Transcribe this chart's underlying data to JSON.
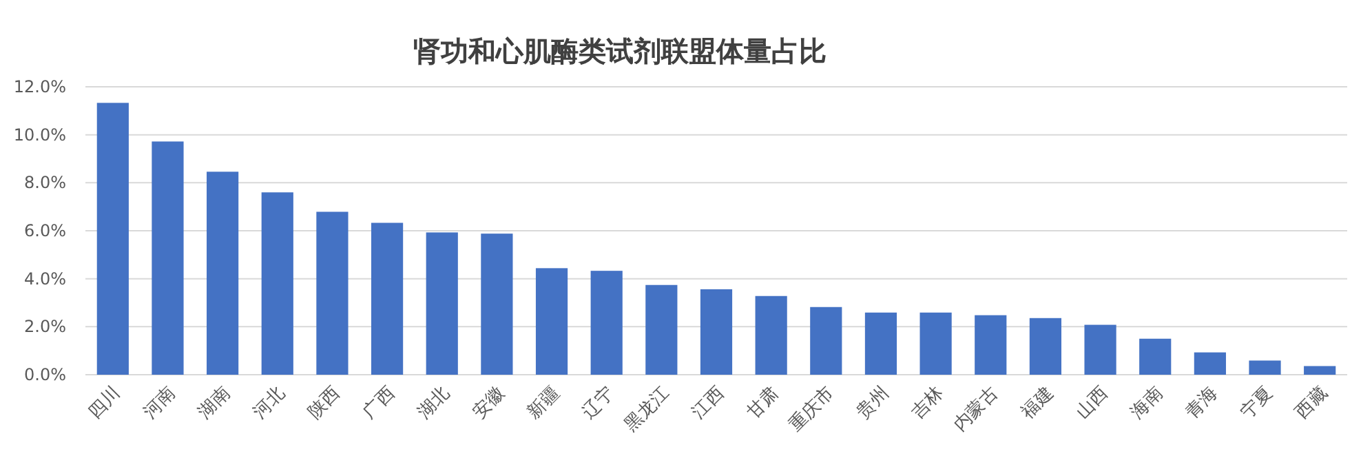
{
  "chart_data": {
    "type": "bar",
    "title": "肾功和心肌酶类试剂联盟体量占比",
    "categories": [
      "四川",
      "河南",
      "湖南",
      "河北",
      "陕西",
      "广西",
      "湖北",
      "安徽",
      "新疆",
      "辽宁",
      "黑龙江",
      "江西",
      "甘肃",
      "重庆市",
      "贵州",
      "吉林",
      "内蒙古",
      "福建",
      "山西",
      "海南",
      "青海",
      "宁夏",
      "西藏"
    ],
    "values": [
      11.33,
      9.72,
      8.46,
      7.6,
      6.79,
      6.33,
      5.93,
      5.88,
      4.44,
      4.33,
      3.74,
      3.56,
      3.28,
      2.82,
      2.59,
      2.59,
      2.48,
      2.36,
      2.08,
      1.5,
      0.93,
      0.59,
      0.36
    ],
    "color": "#4472c4",
    "ylim": [
      0,
      12
    ],
    "yticks": [
      {
        "value": 0,
        "label": "0.0%"
      },
      {
        "value": 2,
        "label": "2.0%"
      },
      {
        "value": 4,
        "label": "4.0%"
      },
      {
        "value": 6,
        "label": "6.0%"
      },
      {
        "value": 8,
        "label": "8.0%"
      },
      {
        "value": 10,
        "label": "10.0%"
      },
      {
        "value": 12,
        "label": "12.0%"
      }
    ],
    "grid": "y"
  }
}
